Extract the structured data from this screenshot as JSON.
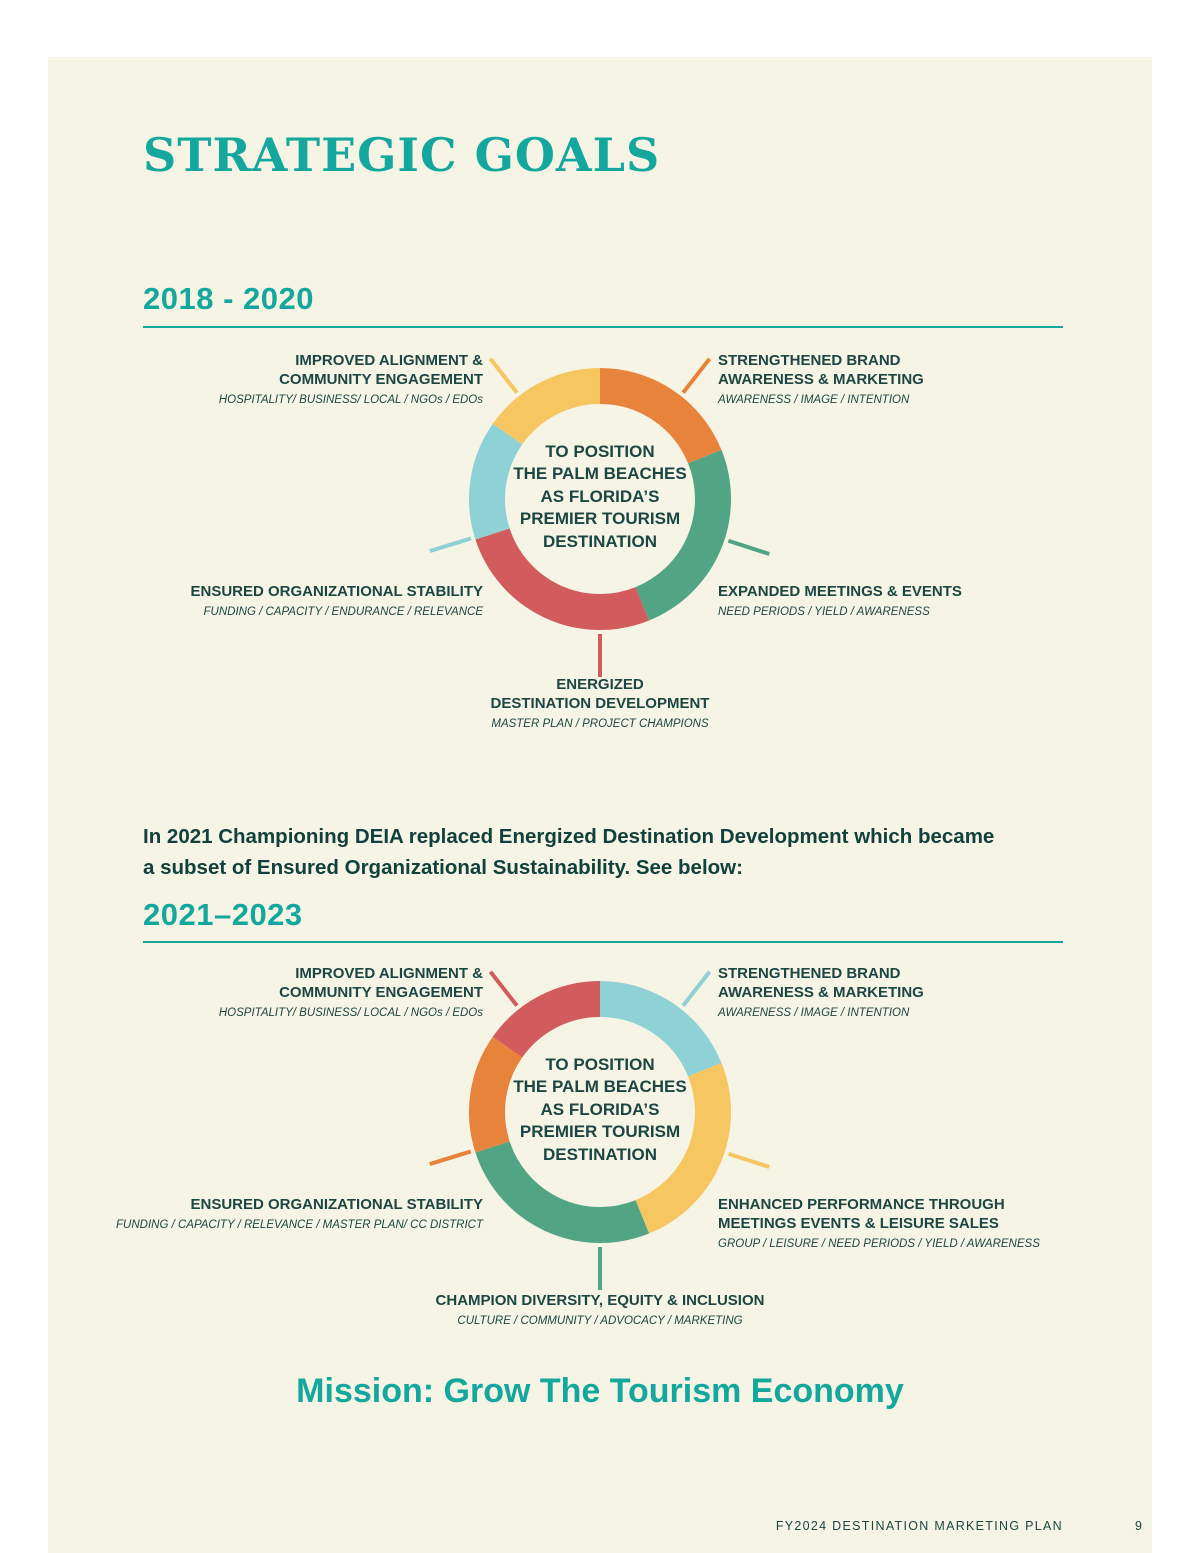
{
  "page": {
    "title": "STRATEGIC GOALS",
    "footer_text": "FY2024 DESTINATION MARKETING PLAN",
    "page_number": "9"
  },
  "colors": {
    "teal": "#14a79e",
    "dark": "#1c4643",
    "ink": "#12403c",
    "cream": "#f6f4e5",
    "yellow": "#f6c661",
    "orange": "#e8833c",
    "green": "#52a584",
    "red": "#d25c5d",
    "blue": "#8fd2d6"
  },
  "note": "In 2021 Championing DEIA replaced Energized Destination Development which became\na subset of Ensured Organizational Sustainability. See below:",
  "mission": "Mission: Grow The Tourism Economy",
  "diagrams": [
    {
      "heading": "2018 - 2020",
      "center": "TO POSITION\nTHE PALM BEACHES\nAS FLORIDA’S\nPREMIER TOURISM\nDESTINATION",
      "goals": [
        {
          "position": "top-left",
          "color": "yellow",
          "arc_start": 305,
          "arc_end": 360,
          "callout": 322,
          "title": "IMPROVED ALIGNMENT &\nCOMMUNITY ENGAGEMENT",
          "sub": "HOSPITALITY/ BUSINESS/ LOCAL / NGOs / EDOs"
        },
        {
          "position": "top-right",
          "color": "orange",
          "arc_start": 0,
          "arc_end": 68,
          "callout": 38,
          "title": "STRENGTHENED BRAND\nAWARENESS & MARKETING",
          "sub": "AWARENESS / IMAGE / INTENTION"
        },
        {
          "position": "right",
          "color": "green",
          "arc_start": 68,
          "arc_end": 158,
          "callout": 108,
          "title": "EXPANDED MEETINGS & EVENTS",
          "sub": "NEED PERIODS / YIELD / AWARENESS"
        },
        {
          "position": "bottom",
          "color": "red",
          "arc_start": 158,
          "arc_end": 252,
          "callout": 180,
          "title": "ENERGIZED\nDESTINATION DEVELOPMENT",
          "sub": "MASTER PLAN / PROJECT CHAMPIONS"
        },
        {
          "position": "left",
          "color": "blue",
          "arc_start": 252,
          "arc_end": 305,
          "callout": 253,
          "title": "ENSURED ORGANIZATIONAL STABILITY",
          "sub": "FUNDING / CAPACITY / ENDURANCE / RELEVANCE"
        }
      ]
    },
    {
      "heading": "2021–2023",
      "center": "TO POSITION\nTHE PALM BEACHES\nAS FLORIDA’S\nPREMIER TOURISM\nDESTINATION",
      "goals": [
        {
          "position": "top-left",
          "color": "red",
          "arc_start": 305,
          "arc_end": 360,
          "callout": 322,
          "title": "IMPROVED ALIGNMENT &\nCOMMUNITY ENGAGEMENT",
          "sub": "HOSPITALITY/ BUSINESS/ LOCAL / NGOs / EDOs"
        },
        {
          "position": "top-right",
          "color": "blue",
          "arc_start": 0,
          "arc_end": 68,
          "callout": 38,
          "title": "STRENGTHENED BRAND\nAWARENESS & MARKETING",
          "sub": "AWARENESS / IMAGE / INTENTION"
        },
        {
          "position": "right",
          "color": "yellow",
          "arc_start": 68,
          "arc_end": 158,
          "callout": 108,
          "title": "ENHANCED PERFORMANCE THROUGH\nMEETINGS EVENTS & LEISURE SALES",
          "sub": "GROUP / LEISURE / NEED PERIODS / YIELD / AWARENESS"
        },
        {
          "position": "bottom",
          "color": "green",
          "arc_start": 158,
          "arc_end": 252,
          "callout": 180,
          "title": "CHAMPION DIVERSITY, EQUITY & INCLUSION",
          "sub": "CULTURE / COMMUNITY / ADVOCACY / MARKETING"
        },
        {
          "position": "left",
          "color": "orange",
          "arc_start": 252,
          "arc_end": 305,
          "callout": 253,
          "title": "ENSURED ORGANIZATIONAL STABILITY",
          "sub": "FUNDING / CAPACITY / RELEVANCE / MASTER PLAN/ CC DISTRICT"
        }
      ]
    }
  ]
}
